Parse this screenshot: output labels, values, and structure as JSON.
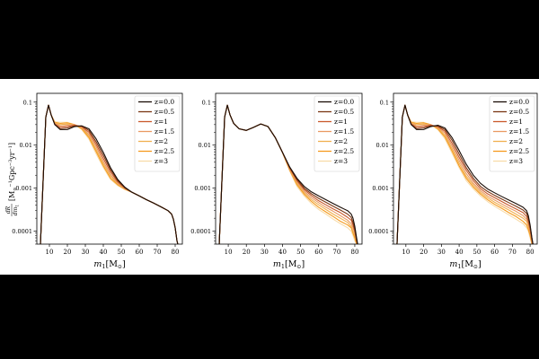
{
  "chart_data": [
    {
      "type": "line",
      "panel": "left",
      "ylabel": "dR/dm₁ [M⊙⁻¹ Gpc⁻³ yr⁻¹]",
      "xlabel": "m₁ [M⊙]",
      "ylabel_parts": {
        "num": "dR",
        "den": "dm",
        "den_sub": "1",
        "unit": "[M",
        "unit_sup1": "−1",
        "unit_mid": "Gpc",
        "unit_sup2": "−3",
        "unit_end": "yr",
        "unit_sup3": "−1",
        "unit_close": "]"
      },
      "xlabel_parts": {
        "m": "m",
        "sub": "1",
        "unit": "[M",
        "close": "]"
      },
      "x_ticks": [
        10,
        20,
        30,
        40,
        50,
        60,
        70,
        80
      ],
      "y_ticks": [
        0.0001,
        0.001,
        0.01,
        0.1
      ],
      "y_tick_labels": [
        "0.0001",
        "0.001",
        "0.01",
        "0.1"
      ],
      "xlim": [
        3,
        84
      ],
      "ylim": [
        5e-05,
        0.16
      ],
      "yscale": "log",
      "legend": "top-right",
      "x": [
        5,
        8,
        9.5,
        11,
        13,
        16,
        20,
        24,
        28,
        32,
        36,
        40,
        44,
        48,
        52,
        56,
        60,
        64,
        68,
        72,
        76,
        78,
        79,
        80,
        81,
        82
      ],
      "series": [
        {
          "name": "z=0.0",
          "values": [
            5e-05,
            0.045,
            0.085,
            0.05,
            0.03,
            0.023,
            0.023,
            0.027,
            0.028,
            0.024,
            0.014,
            0.0068,
            0.003,
            0.0016,
            0.00105,
            0.0008,
            0.00066,
            0.00054,
            0.00045,
            0.00037,
            0.0003,
            0.00025,
            0.00019,
            0.00012,
            6e-05,
            4e-05
          ]
        },
        {
          "name": "z=0.5",
          "values": [
            5e-05,
            0.045,
            0.085,
            0.05,
            0.03,
            0.024,
            0.025,
            0.028,
            0.028,
            0.022,
            0.012,
            0.0058,
            0.0027,
            0.0015,
            0.00102,
            0.0008,
            0.00066,
            0.00054,
            0.00045,
            0.00037,
            0.0003,
            0.00025,
            0.00019,
            0.00012,
            6e-05,
            4e-05
          ]
        },
        {
          "name": "z=1",
          "values": [
            5e-05,
            0.045,
            0.085,
            0.05,
            0.031,
            0.026,
            0.027,
            0.029,
            0.027,
            0.02,
            0.0105,
            0.0049,
            0.0024,
            0.0014,
            0.001,
            0.0008,
            0.00066,
            0.00054,
            0.00045,
            0.00037,
            0.0003,
            0.00025,
            0.00019,
            0.00012,
            6e-05,
            4e-05
          ]
        },
        {
          "name": "z=1.5",
          "values": [
            5e-05,
            0.045,
            0.085,
            0.05,
            0.032,
            0.028,
            0.029,
            0.03,
            0.026,
            0.018,
            0.0092,
            0.0042,
            0.0021,
            0.0013,
            0.00098,
            0.0008,
            0.00066,
            0.00054,
            0.00045,
            0.00037,
            0.0003,
            0.00025,
            0.00019,
            0.00012,
            6e-05,
            4e-05
          ]
        },
        {
          "name": "z=2",
          "values": [
            5e-05,
            0.045,
            0.085,
            0.05,
            0.033,
            0.03,
            0.031,
            0.03,
            0.025,
            0.0165,
            0.008,
            0.0037,
            0.0019,
            0.00125,
            0.00096,
            0.0008,
            0.00066,
            0.00054,
            0.00045,
            0.00037,
            0.0003,
            0.00025,
            0.00019,
            0.00012,
            6e-05,
            4e-05
          ]
        },
        {
          "name": "z=2.5",
          "values": [
            5e-05,
            0.045,
            0.085,
            0.05,
            0.034,
            0.032,
            0.033,
            0.03,
            0.024,
            0.015,
            0.0071,
            0.0033,
            0.0017,
            0.0012,
            0.00094,
            0.0008,
            0.00066,
            0.00054,
            0.00045,
            0.00037,
            0.0003,
            0.00025,
            0.00019,
            0.00012,
            6e-05,
            4e-05
          ]
        },
        {
          "name": "z=3",
          "values": [
            5e-05,
            0.045,
            0.085,
            0.05,
            0.035,
            0.034,
            0.034,
            0.03,
            0.023,
            0.0138,
            0.0063,
            0.003,
            0.0016,
            0.00115,
            0.00093,
            0.0008,
            0.00066,
            0.00054,
            0.00045,
            0.00037,
            0.0003,
            0.00025,
            0.00019,
            0.00012,
            6e-05,
            4e-05
          ]
        }
      ]
    },
    {
      "type": "line",
      "panel": "middle",
      "xlabel": "m₁ [M⊙]",
      "xlabel_parts": {
        "m": "m",
        "sub": "1",
        "unit": "[M",
        "close": "]"
      },
      "x_ticks": [
        10,
        20,
        30,
        40,
        50,
        60,
        70,
        80
      ],
      "y_ticks": [
        0.0001,
        0.001,
        0.01,
        0.1
      ],
      "y_tick_labels": [
        "0.0001",
        "0.001",
        "0.01",
        "0.1"
      ],
      "xlim": [
        3,
        84
      ],
      "ylim": [
        5e-05,
        0.16
      ],
      "yscale": "log",
      "legend": "top-right",
      "x": [
        5,
        8,
        9.5,
        11,
        13,
        16,
        20,
        24,
        28,
        32,
        36,
        40,
        44,
        48,
        52,
        56,
        60,
        64,
        68,
        72,
        76,
        78,
        79,
        80,
        81,
        82
      ],
      "series": [
        {
          "name": "z=0.0",
          "values": [
            5e-05,
            0.045,
            0.085,
            0.05,
            0.032,
            0.024,
            0.022,
            0.026,
            0.031,
            0.027,
            0.015,
            0.0068,
            0.0031,
            0.0017,
            0.0011,
            0.00082,
            0.00066,
            0.00054,
            0.00044,
            0.00036,
            0.0003,
            0.00025,
            0.0002,
            0.00013,
            7e-05,
            4e-05
          ]
        },
        {
          "name": "z=0.5",
          "values": [
            5e-05,
            0.045,
            0.085,
            0.05,
            0.032,
            0.024,
            0.022,
            0.026,
            0.031,
            0.027,
            0.015,
            0.0068,
            0.003,
            0.0016,
            0.001,
            0.00074,
            0.00058,
            0.00047,
            0.00038,
            0.00031,
            0.00025,
            0.00021,
            0.00016,
            0.00011,
            6e-05,
            4e-05
          ]
        },
        {
          "name": "z=1",
          "values": [
            5e-05,
            0.045,
            0.085,
            0.05,
            0.032,
            0.024,
            0.022,
            0.026,
            0.031,
            0.027,
            0.015,
            0.0068,
            0.0029,
            0.0015,
            0.00093,
            0.00067,
            0.00051,
            0.00041,
            0.00033,
            0.00027,
            0.00021,
            0.00018,
            0.00014,
            0.0001,
            6e-05,
            4e-05
          ]
        },
        {
          "name": "z=1.5",
          "values": [
            5e-05,
            0.045,
            0.085,
            0.05,
            0.032,
            0.024,
            0.022,
            0.026,
            0.031,
            0.027,
            0.015,
            0.0068,
            0.0028,
            0.0014,
            0.00085,
            0.0006,
            0.00046,
            0.00036,
            0.00029,
            0.00023,
            0.00018,
            0.00015,
            0.00012,
            9e-05,
            6e-05,
            4e-05
          ]
        },
        {
          "name": "z=2",
          "values": [
            5e-05,
            0.045,
            0.085,
            0.05,
            0.032,
            0.024,
            0.022,
            0.026,
            0.031,
            0.027,
            0.015,
            0.0067,
            0.0027,
            0.0013,
            0.00078,
            0.00054,
            0.00041,
            0.00032,
            0.00025,
            0.0002,
            0.00016,
            0.00013,
            0.0001,
            8e-05,
            6e-05,
            4e-05
          ]
        },
        {
          "name": "z=2.5",
          "values": [
            5e-05,
            0.045,
            0.085,
            0.05,
            0.032,
            0.024,
            0.022,
            0.026,
            0.031,
            0.027,
            0.015,
            0.0067,
            0.0026,
            0.0012,
            0.00072,
            0.00049,
            0.00036,
            0.00028,
            0.00022,
            0.00017,
            0.00014,
            0.00012,
            9e-05,
            7e-05,
            5e-05,
            4e-05
          ]
        },
        {
          "name": "z=3",
          "values": [
            5e-05,
            0.045,
            0.085,
            0.05,
            0.032,
            0.024,
            0.022,
            0.026,
            0.031,
            0.027,
            0.015,
            0.0066,
            0.0025,
            0.0011,
            0.00066,
            0.00044,
            0.00032,
            0.00025,
            0.00019,
            0.00015,
            0.00012,
            0.0001,
            8e-05,
            6e-05,
            5e-05,
            4e-05
          ]
        }
      ]
    },
    {
      "type": "line",
      "panel": "right",
      "xlabel": "m₁ [M⊙]",
      "xlabel_parts": {
        "m": "m",
        "sub": "1",
        "unit": "[M",
        "close": "]"
      },
      "x_ticks": [
        10,
        20,
        30,
        40,
        50,
        60,
        70,
        80
      ],
      "y_ticks": [
        0.0001,
        0.001,
        0.01,
        0.1
      ],
      "y_tick_labels": [
        "0.0001",
        "0.001",
        "0.01",
        "0.1"
      ],
      "xlim": [
        3,
        84
      ],
      "ylim": [
        5e-05,
        0.16
      ],
      "yscale": "log",
      "legend": "top-right",
      "x": [
        5,
        8,
        9.5,
        11,
        13,
        16,
        20,
        24,
        28,
        32,
        36,
        40,
        44,
        48,
        52,
        56,
        60,
        64,
        68,
        72,
        76,
        78,
        79,
        80,
        81,
        82
      ],
      "series": [
        {
          "name": "z=0.0",
          "values": [
            5e-05,
            0.045,
            0.085,
            0.05,
            0.03,
            0.023,
            0.023,
            0.027,
            0.029,
            0.025,
            0.015,
            0.0075,
            0.0036,
            0.002,
            0.0013,
            0.00096,
            0.00078,
            0.00064,
            0.00053,
            0.00044,
            0.00036,
            0.0003,
            0.00023,
            0.00014,
            7e-05,
            4e-05
          ]
        },
        {
          "name": "z=0.5",
          "values": [
            5e-05,
            0.045,
            0.085,
            0.05,
            0.03,
            0.024,
            0.025,
            0.028,
            0.028,
            0.023,
            0.013,
            0.0062,
            0.003,
            0.0017,
            0.0011,
            0.00084,
            0.00068,
            0.00056,
            0.00046,
            0.00038,
            0.00031,
            0.00026,
            0.0002,
            0.00013,
            7e-05,
            4e-05
          ]
        },
        {
          "name": "z=1",
          "values": [
            5e-05,
            0.045,
            0.085,
            0.05,
            0.031,
            0.026,
            0.027,
            0.029,
            0.027,
            0.021,
            0.011,
            0.0052,
            0.0026,
            0.0015,
            0.00098,
            0.00074,
            0.0006,
            0.00049,
            0.0004,
            0.00033,
            0.00027,
            0.00022,
            0.00017,
            0.00011,
            6e-05,
            4e-05
          ]
        },
        {
          "name": "z=1.5",
          "values": [
            5e-05,
            0.045,
            0.085,
            0.05,
            0.032,
            0.028,
            0.029,
            0.03,
            0.026,
            0.019,
            0.0095,
            0.0044,
            0.0022,
            0.0013,
            0.00088,
            0.00066,
            0.00053,
            0.00043,
            0.00035,
            0.00029,
            0.00023,
            0.00019,
            0.00015,
            0.0001,
            6e-05,
            4e-05
          ]
        },
        {
          "name": "z=2",
          "values": [
            5e-05,
            0.045,
            0.085,
            0.05,
            0.033,
            0.03,
            0.031,
            0.03,
            0.025,
            0.017,
            0.0083,
            0.0038,
            0.0019,
            0.00118,
            0.0008,
            0.0006,
            0.00047,
            0.00038,
            0.00031,
            0.00025,
            0.0002,
            0.00017,
            0.00013,
            9e-05,
            5e-05,
            4e-05
          ]
        },
        {
          "name": "z=2.5",
          "values": [
            5e-05,
            0.045,
            0.085,
            0.05,
            0.034,
            0.032,
            0.033,
            0.03,
            0.024,
            0.0155,
            0.0073,
            0.0033,
            0.0017,
            0.00106,
            0.00073,
            0.00054,
            0.00042,
            0.00034,
            0.00027,
            0.00022,
            0.00017,
            0.00014,
            0.00011,
            8e-05,
            5e-05,
            4e-05
          ]
        },
        {
          "name": "z=3",
          "values": [
            5e-05,
            0.045,
            0.085,
            0.05,
            0.035,
            0.034,
            0.034,
            0.03,
            0.023,
            0.014,
            0.0065,
            0.003,
            0.0015,
            0.00096,
            0.00066,
            0.00049,
            0.00038,
            0.0003,
            0.00024,
            0.00019,
            0.00015,
            0.00012,
            0.0001,
            7e-05,
            5e-05,
            4e-05
          ]
        }
      ]
    }
  ],
  "series_colors": [
    "#1a0d06",
    "#7a3613",
    "#c9592a",
    "#e99a63",
    "#f0b050",
    "#f59a1e",
    "#f8dcaa"
  ]
}
